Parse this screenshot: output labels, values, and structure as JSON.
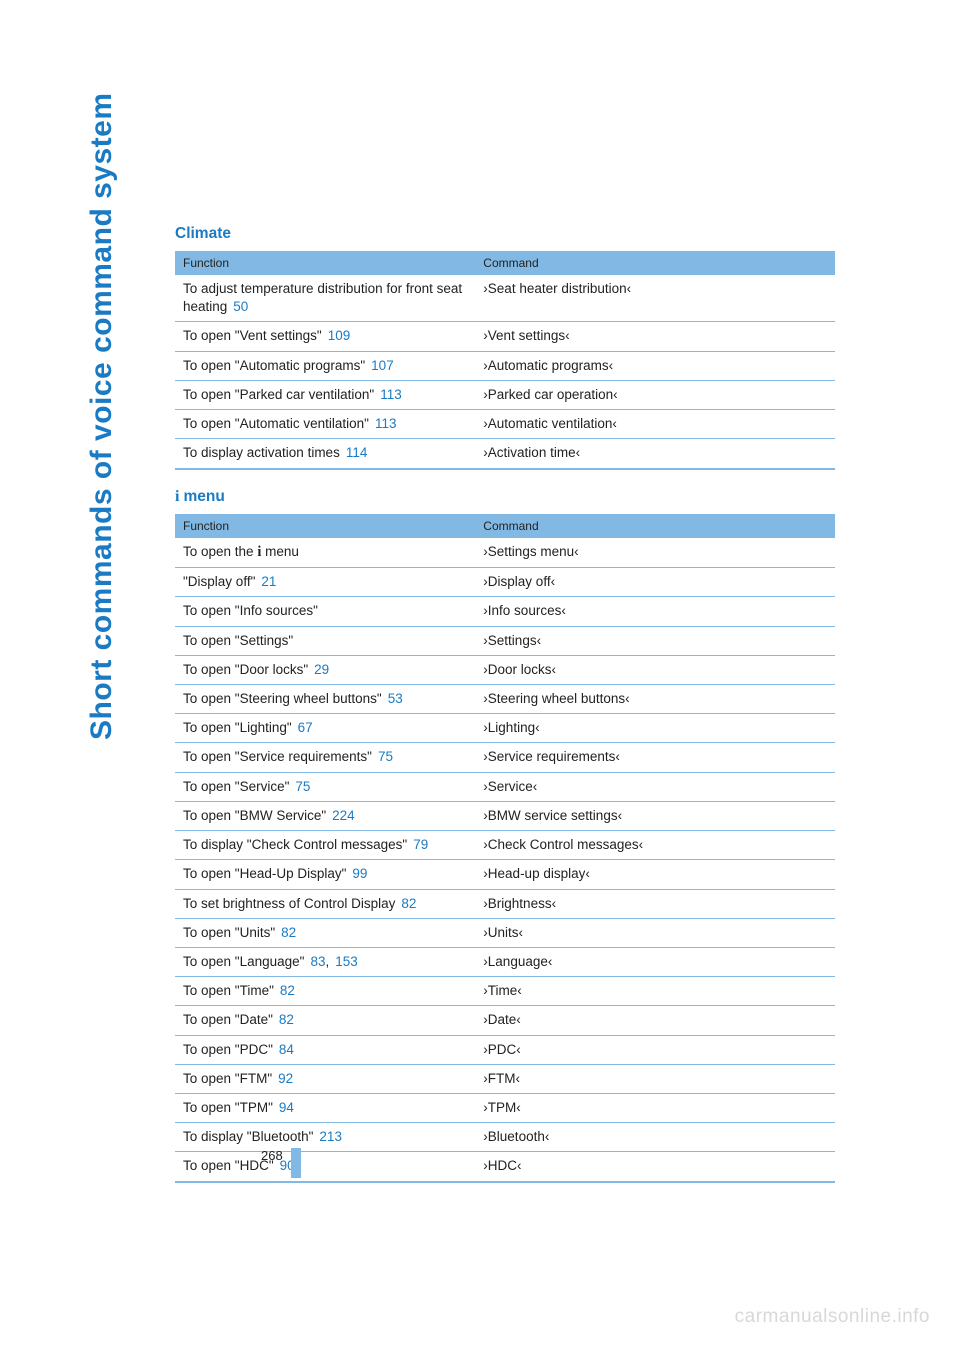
{
  "sidebar_title": "Short commands of voice command system",
  "sections": [
    {
      "title": "Climate",
      "has_icon": false,
      "header": {
        "func": "Function",
        "cmd": "Command"
      },
      "rows": [
        {
          "func_pre": "To adjust temperature distribution for front seat heating",
          "refs": [
            "50"
          ],
          "cmd": "Seat heater distribution"
        },
        {
          "func_pre": "To open \"Vent settings\"",
          "refs": [
            "109"
          ],
          "cmd": "Vent settings"
        },
        {
          "func_pre": "To open \"Automatic programs\"",
          "refs": [
            "107"
          ],
          "cmd": "Automatic programs"
        },
        {
          "func_pre": "To open \"Parked car ventilation\"",
          "refs": [
            "113"
          ],
          "cmd": "Parked car operation"
        },
        {
          "func_pre": "To open \"Automatic ventilation\"",
          "refs": [
            "113"
          ],
          "cmd": "Automatic ventilation"
        },
        {
          "func_pre": "To display activation times",
          "refs": [
            "114"
          ],
          "cmd": "Activation time"
        }
      ]
    },
    {
      "title": "menu",
      "has_icon": true,
      "header": {
        "func": "Function",
        "cmd": "Command"
      },
      "rows": [
        {
          "func_pre": "To open the ",
          "func_post": " menu",
          "inline_icon": true,
          "refs": [],
          "cmd": "Settings menu"
        },
        {
          "func_pre": "\"Display off\"",
          "refs": [
            "21"
          ],
          "cmd": "Display off"
        },
        {
          "func_pre": "To open \"Info sources\"",
          "refs": [],
          "cmd": "Info sources"
        },
        {
          "func_pre": "To open \"Settings\"",
          "refs": [],
          "cmd": "Settings"
        },
        {
          "func_pre": "To open \"Door locks\"",
          "refs": [
            "29"
          ],
          "cmd": "Door locks"
        },
        {
          "func_pre": "To open \"Steering wheel buttons\"",
          "refs": [
            "53"
          ],
          "cmd": "Steering wheel buttons"
        },
        {
          "func_pre": "To open \"Lighting\"",
          "refs": [
            "67"
          ],
          "cmd": "Lighting"
        },
        {
          "func_pre": "To open \"Service requirements\"",
          "refs": [
            "75"
          ],
          "cmd": "Service requirements"
        },
        {
          "func_pre": "To open \"Service\"",
          "refs": [
            "75"
          ],
          "cmd": "Service"
        },
        {
          "func_pre": "To open \"BMW Service\"",
          "refs": [
            "224"
          ],
          "cmd": "BMW service settings"
        },
        {
          "func_pre": "To display \"Check Control messages\"",
          "refs": [
            "79"
          ],
          "cmd": "Check Control messages"
        },
        {
          "func_pre": "To open \"Head-Up Display\"",
          "refs": [
            "99"
          ],
          "cmd": "Head-up display"
        },
        {
          "func_pre": "To set brightness of Control Display",
          "refs": [
            "82"
          ],
          "cmd": "Brightness"
        },
        {
          "func_pre": "To open \"Units\"",
          "refs": [
            "82"
          ],
          "cmd": "Units"
        },
        {
          "func_pre": "To open \"Language\"",
          "refs": [
            "83",
            "153"
          ],
          "cmd": "Language"
        },
        {
          "func_pre": "To open \"Time\"",
          "refs": [
            "82"
          ],
          "cmd": "Time"
        },
        {
          "func_pre": "To open \"Date\"",
          "refs": [
            "82"
          ],
          "cmd": "Date"
        },
        {
          "func_pre": "To open \"PDC\"",
          "refs": [
            "84"
          ],
          "cmd": "PDC"
        },
        {
          "func_pre": "To open \"FTM\"",
          "refs": [
            "92"
          ],
          "cmd": "FTM"
        },
        {
          "func_pre": "To open \"TPM\"",
          "refs": [
            "94"
          ],
          "cmd": "TPM"
        },
        {
          "func_pre": "To display \"Bluetooth\"",
          "refs": [
            "213"
          ],
          "cmd": "Bluetooth"
        },
        {
          "func_pre": "To open \"HDC\"",
          "refs": [
            "90"
          ],
          "cmd": "HDC"
        }
      ]
    }
  ],
  "page_number": "268",
  "watermark": "carmanualsonline.info",
  "colors": {
    "link": "#1a7bc4",
    "header_bg": "#82b9e4",
    "text": "#222222"
  }
}
